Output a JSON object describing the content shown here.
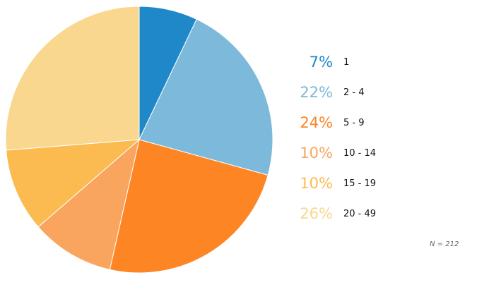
{
  "chart_data": {
    "type": "pie",
    "categories": [
      "1",
      "2 - 4",
      "5 - 9",
      "10 - 14",
      "15 - 19",
      "20 - 49"
    ],
    "values": [
      7,
      22,
      24,
      10,
      10,
      26
    ],
    "percent_labels": [
      "7%",
      "22%",
      "24%",
      "10%",
      "10%",
      "26%"
    ],
    "colors": [
      "#1f88c9",
      "#7cb9da",
      "#fd8524",
      "#f9a55e",
      "#fbbb50",
      "#f9d78e"
    ],
    "legend_position": "right",
    "start": "top, clockwise",
    "note": "N = 212"
  }
}
